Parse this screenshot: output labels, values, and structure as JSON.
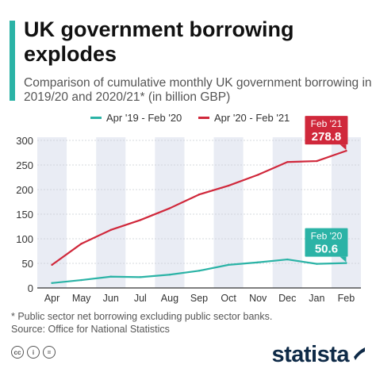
{
  "header": {
    "title": "UK government borrowing explodes",
    "subtitle": "Comparison of cumulative monthly UK government borrowing in 2019/20 and 2020/21* (in billion GBP)"
  },
  "colors": {
    "accent": "#2bb3a6",
    "series_2019": "#2bb3a6",
    "series_2020": "#d0283b",
    "stripe": "#e9ecf4"
  },
  "chart_data": {
    "type": "line",
    "categories": [
      "Apr",
      "May",
      "Jun",
      "Jul",
      "Aug",
      "Sep",
      "Oct",
      "Nov",
      "Dec",
      "Jan",
      "Feb"
    ],
    "series": [
      {
        "name": "Apr '19 - Feb '20",
        "color": "#2bb3a6",
        "values": [
          10,
          16,
          23,
          22,
          27,
          35,
          47,
          52,
          58,
          49,
          50.6
        ]
      },
      {
        "name": "Apr '20 - Feb '21",
        "color": "#d0283b",
        "values": [
          47,
          90,
          118,
          138,
          162,
          190,
          208,
          230,
          256,
          258,
          278.8
        ]
      }
    ],
    "yticks": [
      0,
      50,
      100,
      150,
      200,
      250,
      300
    ],
    "ylim": [
      0,
      300
    ],
    "grid": true,
    "legend_position": "top",
    "annotations": [
      {
        "series": 1,
        "label": "Feb '21",
        "value": "278.8"
      },
      {
        "series": 0,
        "label": "Feb '20",
        "value": "50.6"
      }
    ]
  },
  "footnote": {
    "line1": "* Public sector net borrowing excluding public sector banks.",
    "line2": "Source: Office for National Statistics"
  },
  "footer": {
    "brand": "statista",
    "license_icons": [
      "cc",
      "i",
      "="
    ]
  }
}
